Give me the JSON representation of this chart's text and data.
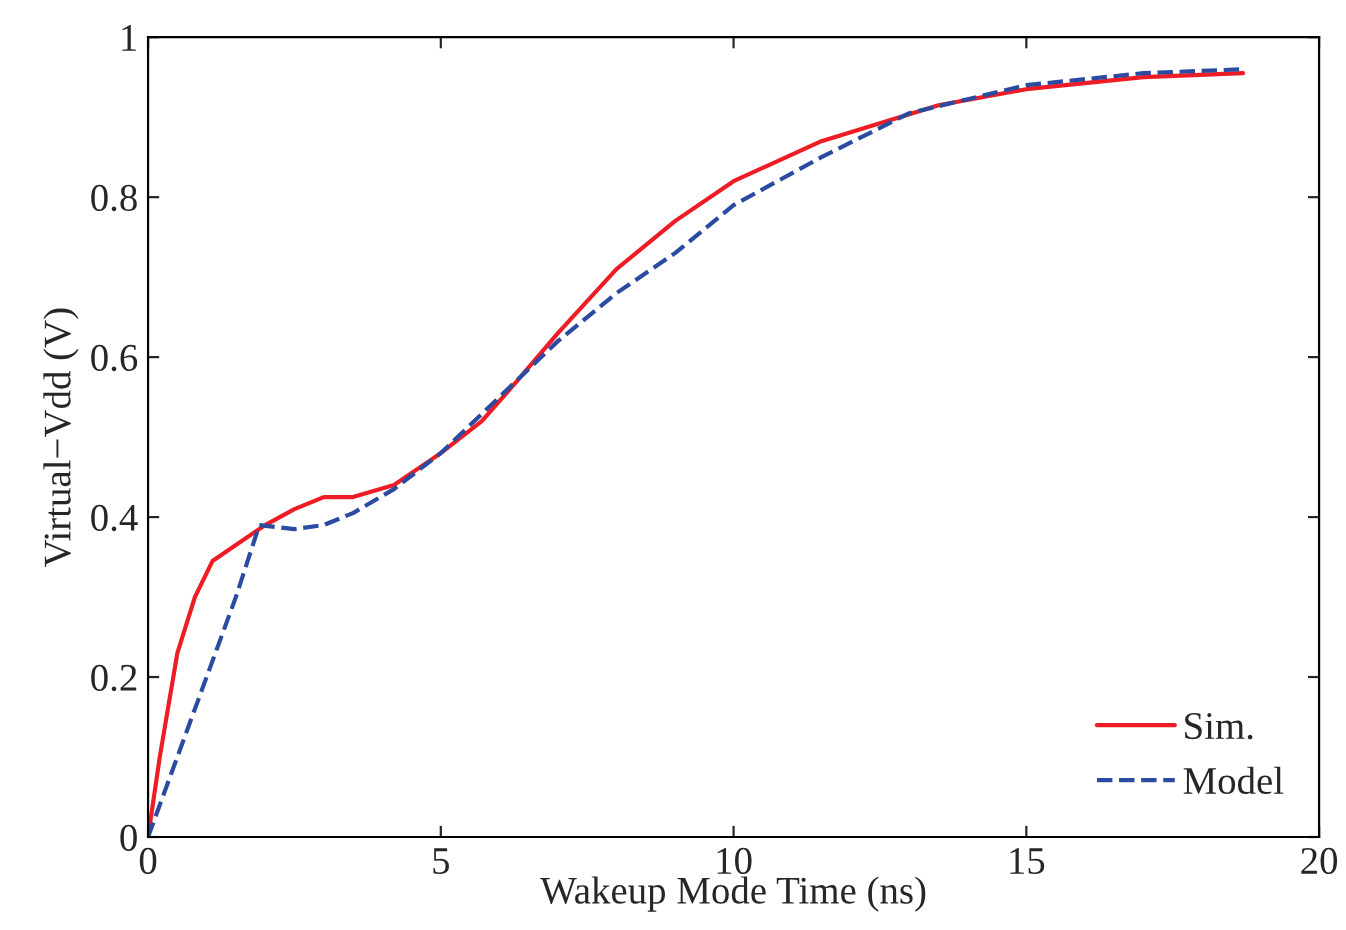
{
  "chart_data": {
    "type": "line",
    "xlabel": "Wakeup Mode Time (ns)",
    "ylabel": "Virtual−Vdd (V)",
    "xlim": [
      0,
      20
    ],
    "ylim": [
      0,
      1
    ],
    "xticks": [
      0,
      5,
      10,
      15,
      20
    ],
    "yticks": [
      0,
      0.2,
      0.4,
      0.6,
      0.8,
      {
        "value": 1,
        "label": "1"
      }
    ],
    "grid": false,
    "legend": "bottom right",
    "series": [
      {
        "name": "Sim.",
        "color": "#ee1c25",
        "line_style": "solid",
        "x": [
          0,
          0.2,
          0.5,
          0.8,
          1.1,
          1.5,
          2,
          2.5,
          3,
          3.5,
          4.2,
          5,
          5.7,
          6.3,
          7,
          8,
          9,
          10,
          11.5,
          13.5,
          15,
          17,
          18.7
        ],
        "values": [
          0,
          0.1,
          0.23,
          0.3,
          0.345,
          0.365,
          0.39,
          0.41,
          0.425,
          0.425,
          0.44,
          0.48,
          0.52,
          0.57,
          0.63,
          0.71,
          0.77,
          0.82,
          0.87,
          0.915,
          0.935,
          0.95,
          0.955
        ]
      },
      {
        "name": "Model",
        "color": "#2b4ba0",
        "line_style": "dashed",
        "x": [
          0,
          0.5,
          1,
          1.5,
          1.9,
          2.5,
          3,
          3.5,
          4.2,
          5,
          6,
          7,
          8,
          9,
          10,
          11.5,
          13,
          15,
          17,
          18.7
        ],
        "values": [
          0,
          0.1,
          0.2,
          0.3,
          0.39,
          0.385,
          0.39,
          0.405,
          0.435,
          0.48,
          0.55,
          0.62,
          0.68,
          0.73,
          0.79,
          0.85,
          0.905,
          0.94,
          0.955,
          0.96
        ]
      }
    ]
  }
}
